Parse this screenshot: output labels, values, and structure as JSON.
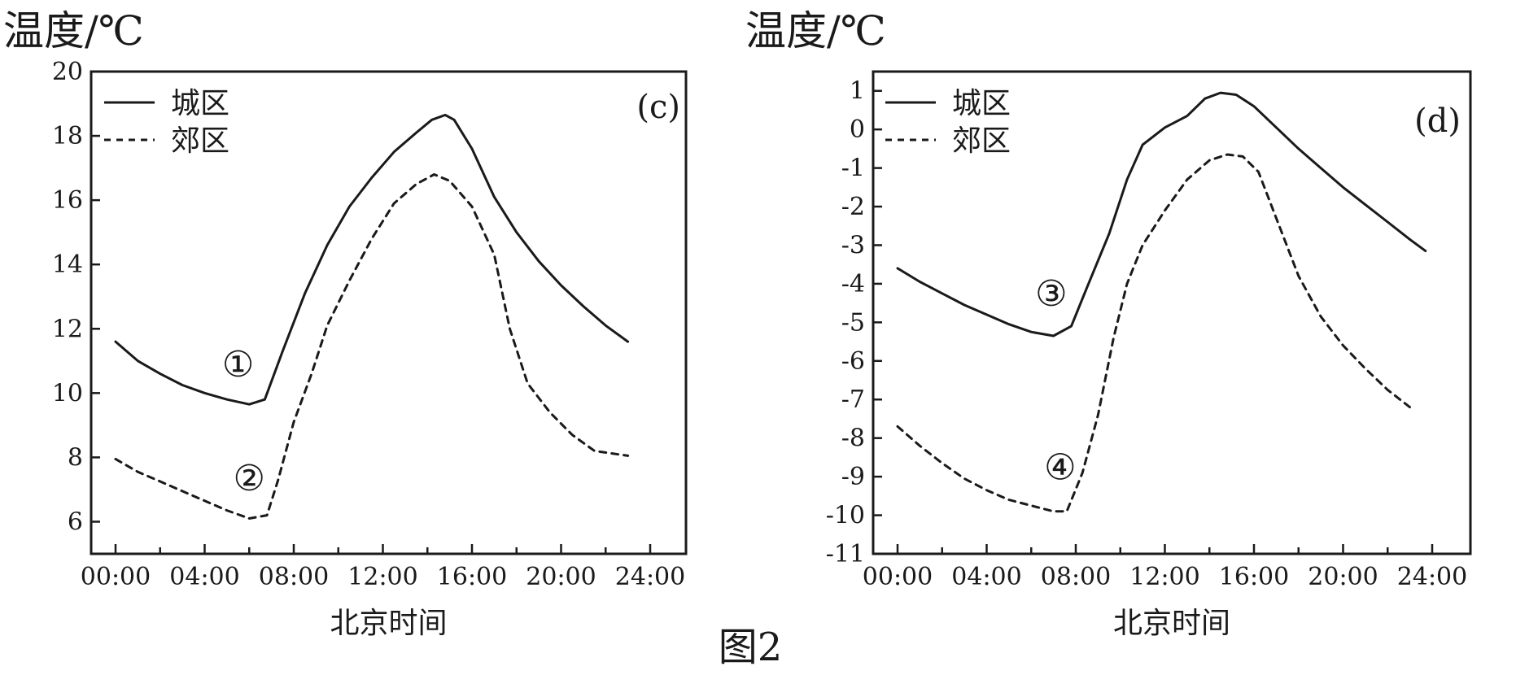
{
  "figure_caption": "图2",
  "chart_data": [
    {
      "type": "line",
      "panel_label": "(c)",
      "ylabel": "温度/℃",
      "xlabel": "北京时间",
      "x_tick_labels": [
        "00:00",
        "04:00",
        "08:00",
        "12:00",
        "16:00",
        "20:00",
        "24:00"
      ],
      "xlim": [
        0,
        24
      ],
      "ylim": [
        5,
        20
      ],
      "y_ticks": [
        6,
        8,
        10,
        12,
        14,
        16,
        18,
        20
      ],
      "y_tick_labels": [
        "6",
        "8",
        "10",
        "12",
        "14",
        "16",
        "18",
        "20"
      ],
      "grid": false,
      "legend_position": "top-left",
      "series": [
        {
          "name": "城区",
          "style": "solid",
          "points": [
            [
              0,
              11.6
            ],
            [
              1,
              11.0
            ],
            [
              2,
              10.6
            ],
            [
              3,
              10.25
            ],
            [
              4,
              10.0
            ],
            [
              5,
              9.8
            ],
            [
              6,
              9.65
            ],
            [
              6.7,
              9.8
            ],
            [
              7.5,
              11.3
            ],
            [
              8.5,
              13.1
            ],
            [
              9.5,
              14.6
            ],
            [
              10.5,
              15.8
            ],
            [
              11.5,
              16.7
            ],
            [
              12.5,
              17.5
            ],
            [
              13.5,
              18.1
            ],
            [
              14.2,
              18.5
            ],
            [
              14.8,
              18.65
            ],
            [
              15.2,
              18.5
            ],
            [
              16,
              17.6
            ],
            [
              17,
              16.1
            ],
            [
              18,
              15.0
            ],
            [
              19,
              14.1
            ],
            [
              20,
              13.35
            ],
            [
              21,
              12.7
            ],
            [
              22,
              12.1
            ],
            [
              23,
              11.6
            ]
          ]
        },
        {
          "name": "郊区",
          "style": "dashed",
          "points": [
            [
              0,
              7.95
            ],
            [
              1,
              7.55
            ],
            [
              2,
              7.25
            ],
            [
              3,
              6.95
            ],
            [
              4,
              6.65
            ],
            [
              5,
              6.35
            ],
            [
              6,
              6.1
            ],
            [
              6.8,
              6.2
            ],
            [
              7.3,
              7.3
            ],
            [
              8,
              9.1
            ],
            [
              8.8,
              10.6
            ],
            [
              9.5,
              12.1
            ],
            [
              10.5,
              13.5
            ],
            [
              11.5,
              14.8
            ],
            [
              12.5,
              15.9
            ],
            [
              13.5,
              16.5
            ],
            [
              14.3,
              16.8
            ],
            [
              15.0,
              16.6
            ],
            [
              16,
              15.8
            ],
            [
              17,
              14.3
            ],
            [
              17.7,
              12.0
            ],
            [
              18.5,
              10.3
            ],
            [
              19.5,
              9.4
            ],
            [
              20.5,
              8.7
            ],
            [
              21.5,
              8.2
            ],
            [
              23,
              8.05
            ]
          ]
        }
      ],
      "annotations": [
        {
          "text": "①",
          "x": 5.5,
          "y": 10.9
        },
        {
          "text": "②",
          "x": 6.0,
          "y": 7.35
        }
      ]
    },
    {
      "type": "line",
      "panel_label": "(d)",
      "ylabel": "温度/℃",
      "xlabel": "北京时间",
      "x_tick_labels": [
        "00:00",
        "04:00",
        "08:00",
        "12:00",
        "16:00",
        "20:00",
        "24:00"
      ],
      "xlim": [
        0,
        24
      ],
      "ylim": [
        -11,
        1.5
      ],
      "y_ticks": [
        -11,
        -10,
        -9,
        -8,
        -7,
        -6,
        -5,
        -4,
        -3,
        -2,
        -1,
        0,
        1
      ],
      "y_tick_labels": [
        "-11",
        "-10",
        "-9",
        "-8",
        "-7",
        "-6",
        "-5",
        "-4",
        "-3",
        "-2",
        "-1",
        "0",
        "1"
      ],
      "grid": false,
      "legend_position": "top-left",
      "series": [
        {
          "name": "城区",
          "style": "solid",
          "points": [
            [
              0,
              -3.6
            ],
            [
              1,
              -3.95
            ],
            [
              2,
              -4.25
            ],
            [
              3,
              -4.55
            ],
            [
              4,
              -4.8
            ],
            [
              5,
              -5.05
            ],
            [
              6,
              -5.25
            ],
            [
              7,
              -5.35
            ],
            [
              7.8,
              -5.1
            ],
            [
              8.5,
              -4.1
            ],
            [
              9.5,
              -2.7
            ],
            [
              10.3,
              -1.3
            ],
            [
              11,
              -0.4
            ],
            [
              12,
              0.05
            ],
            [
              13,
              0.35
            ],
            [
              13.8,
              0.8
            ],
            [
              14.5,
              0.95
            ],
            [
              15.2,
              0.9
            ],
            [
              16,
              0.6
            ],
            [
              17,
              0.05
            ],
            [
              18,
              -0.5
            ],
            [
              19,
              -1.0
            ],
            [
              20,
              -1.5
            ],
            [
              21,
              -1.95
            ],
            [
              22,
              -2.4
            ],
            [
              23,
              -2.85
            ],
            [
              23.7,
              -3.15
            ]
          ]
        },
        {
          "name": "郊区",
          "style": "dashed",
          "points": [
            [
              0,
              -7.7
            ],
            [
              1,
              -8.2
            ],
            [
              2,
              -8.65
            ],
            [
              3,
              -9.05
            ],
            [
              4,
              -9.35
            ],
            [
              5,
              -9.6
            ],
            [
              6,
              -9.75
            ],
            [
              7,
              -9.9
            ],
            [
              7.6,
              -9.9
            ],
            [
              8.3,
              -8.9
            ],
            [
              9,
              -7.4
            ],
            [
              9.7,
              -5.4
            ],
            [
              10.3,
              -4.0
            ],
            [
              11,
              -3.0
            ],
            [
              12,
              -2.1
            ],
            [
              13,
              -1.3
            ],
            [
              14,
              -0.8
            ],
            [
              14.8,
              -0.65
            ],
            [
              15.5,
              -0.7
            ],
            [
              16.2,
              -1.1
            ],
            [
              17,
              -2.3
            ],
            [
              18,
              -3.8
            ],
            [
              19,
              -4.85
            ],
            [
              20,
              -5.6
            ],
            [
              21,
              -6.2
            ],
            [
              22,
              -6.75
            ],
            [
              23,
              -7.2
            ]
          ]
        }
      ],
      "annotations": [
        {
          "text": "③",
          "x": 6.9,
          "y": -4.25
        },
        {
          "text": "④",
          "x": 7.3,
          "y": -8.75
        }
      ]
    }
  ]
}
